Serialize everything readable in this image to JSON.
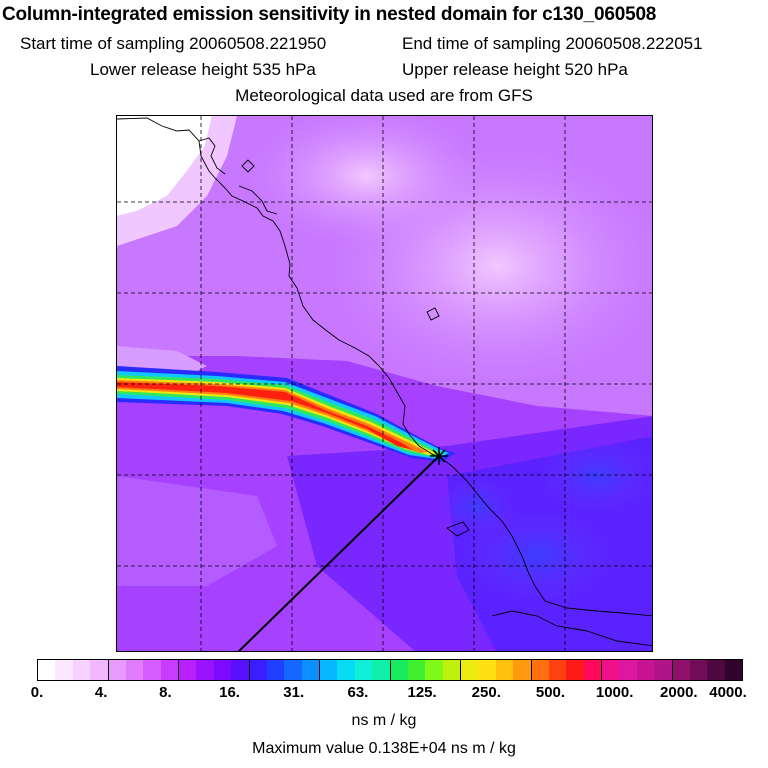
{
  "title": "Column-integrated emission sensitivity in nested domain for c130_060508",
  "sampling": {
    "start_label": "Start time of sampling 20060508.221950",
    "end_label": "End time of sampling 20060508.222051"
  },
  "release": {
    "lower_label": "Lower release height  535 hPa",
    "upper_label": "Upper release height  520 hPa"
  },
  "met_label": "Meteorological data used are from GFS",
  "colorbar": {
    "ticks": [
      "0.",
      "4.",
      "8.",
      "16.",
      "31.",
      "63.",
      "125.",
      "250.",
      "500.",
      "1000.",
      "2000.",
      "4000."
    ],
    "colors": [
      "#ffffff",
      "#fbe8ff",
      "#f6d2ff",
      "#f0b8ff",
      "#e89bff",
      "#e07cff",
      "#d65cff",
      "#c93bff",
      "#b820ff",
      "#9b12ff",
      "#7d0aff",
      "#5a10ff",
      "#3a1eff",
      "#2040ff",
      "#1467ff",
      "#0c8fff",
      "#08b8ff",
      "#08dcf4",
      "#10f0d8",
      "#10f0a8",
      "#18ea60",
      "#40f030",
      "#80f818",
      "#c0f010",
      "#ecec10",
      "#ffe010",
      "#ffc010",
      "#ff9a10",
      "#ff7010",
      "#ff4010",
      "#ff1a1a",
      "#ff0a5a",
      "#f0108a",
      "#dc18a0",
      "#c81494",
      "#b01488",
      "#90106e",
      "#700c58",
      "#500840",
      "#30042a"
    ],
    "units": "ns m / kg"
  },
  "max_label": "Maximum value  0.138E+04 ns m / kg"
}
